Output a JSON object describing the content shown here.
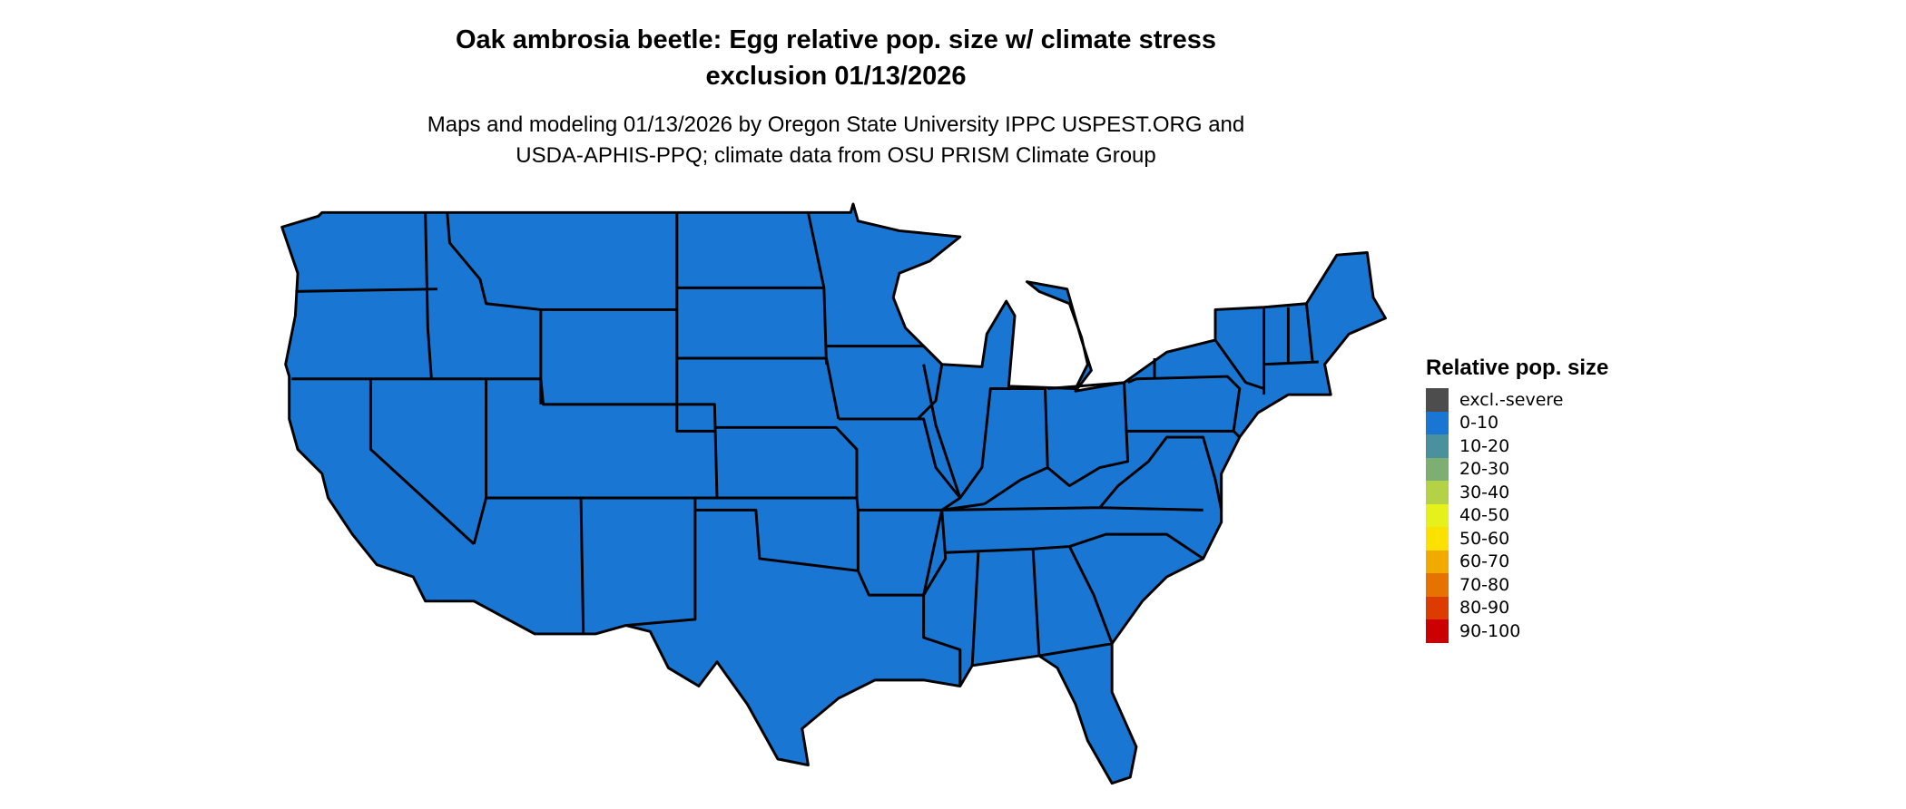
{
  "title_line1": "Oak ambrosia beetle: Egg relative pop. size w/ climate stress",
  "title_line2": "exclusion 01/13/2026",
  "subtitle_line1": "Maps and modeling 01/13/2026 by Oregon State University IPPC USPEST.ORG and",
  "subtitle_line2": "USDA-APHIS-PPQ; climate data from OSU PRISM Climate Group",
  "map": {
    "region": "Contiguous United States",
    "fill_color": "#1976D2",
    "border_color": "#000000",
    "fill_class": "0-10"
  },
  "legend": {
    "title": "Relative pop. size",
    "items": [
      {
        "label": "excl.-severe",
        "color": "#4D4D4D"
      },
      {
        "label": "0-10",
        "color": "#1976D2"
      },
      {
        "label": "10-20",
        "color": "#4A919E"
      },
      {
        "label": "20-30",
        "color": "#7DAF72"
      },
      {
        "label": "30-40",
        "color": "#B5D145"
      },
      {
        "label": "40-50",
        "color": "#E6F01A"
      },
      {
        "label": "50-60",
        "color": "#FAE100"
      },
      {
        "label": "60-70",
        "color": "#F0AA00"
      },
      {
        "label": "70-80",
        "color": "#E67300"
      },
      {
        "label": "80-90",
        "color": "#DC3C00"
      },
      {
        "label": "90-100",
        "color": "#CC0000"
      }
    ]
  }
}
